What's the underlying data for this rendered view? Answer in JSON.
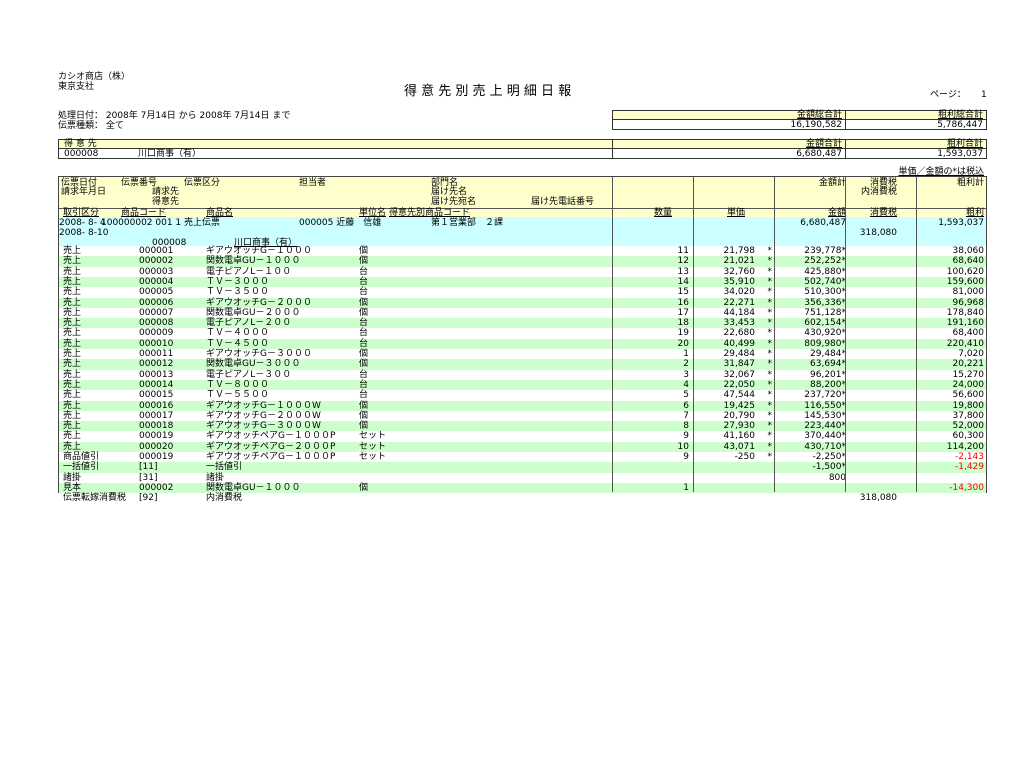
{
  "company": "カシオ商店（株）",
  "branch": "東京支社",
  "title": "得 意 先 別 売 上 明 細 日 報",
  "page_label": "ページ：",
  "page_no": "1",
  "date_range": "処理日付： 2008年 7月14日 から 2008年 7月14日 まで",
  "slip_type": "伝票種類： 全て",
  "grand": {
    "amount_label": "金額総合計",
    "amount": "16,190,582",
    "profit_label": "粗利総合計",
    "profit": "5,786,447"
  },
  "customer": {
    "label": "得 意 先",
    "code": "000008",
    "name": "川口商事（有）",
    "amount_label": "金額合計",
    "amount": "6,680,487",
    "profit_label": "粗利合計",
    "profit": "1,593,037"
  },
  "note": "単価／金額の*は税込",
  "headers": {
    "slip_date": "伝票日付",
    "bill_date": "請求年月日",
    "slip_no": "伝票番号",
    "bill_to": "請求先",
    "customer": "得意先",
    "slip_kind": "伝票区分",
    "staff": "担当者",
    "dept": "部門名",
    "ship_name": "届け先名",
    "ship_attn": "届け先宛名",
    "ship_tel": "届け先電話番号",
    "amount_total": "金額計",
    "tax": "消費税",
    "inner_tax": "内消費税",
    "profit_total": "粗利計",
    "trade": "取引区分",
    "item_code": "商品コード",
    "item_name": "商品名",
    "unit": "単位名",
    "cust_item_code": "得意先別商品コード",
    "qty": "数量",
    "price": "単価",
    "amount": "金額",
    "tax2": "消費税",
    "profit": "粗利"
  },
  "slip": {
    "date": "2008- 8- 4",
    "bill_date": "2008- 8-10",
    "no_kind": "100000002 001 1 売上伝票",
    "staff": "000005 近藤　信雄",
    "dept": "第１営業部　２課",
    "cust_code": "000008",
    "cust_name": "川口商事（有）",
    "amount": "6,680,487",
    "tax": "318,080",
    "profit": "1,593,037"
  },
  "rows": [
    {
      "trade": "売上",
      "code": "000001",
      "name": "ギアウオッチG－１０００",
      "unit": "個",
      "qty": "11",
      "price": "21,798",
      "pt": "*",
      "amount": "239,778*",
      "tax": "",
      "profit": "38,060"
    },
    {
      "trade": "売上",
      "code": "000002",
      "name": "関数電卓GU－１０００",
      "unit": "個",
      "qty": "12",
      "price": "21,021",
      "pt": "*",
      "amount": "252,252*",
      "tax": "",
      "profit": "68,640"
    },
    {
      "trade": "売上",
      "code": "000003",
      "name": "電子ピアノL－１００",
      "unit": "台",
      "qty": "13",
      "price": "32,760",
      "pt": "*",
      "amount": "425,880*",
      "tax": "",
      "profit": "100,620"
    },
    {
      "trade": "売上",
      "code": "000004",
      "name": "ＴＶ－３０００",
      "unit": "台",
      "qty": "14",
      "price": "35,910",
      "pt": "*",
      "amount": "502,740*",
      "tax": "",
      "profit": "159,600"
    },
    {
      "trade": "売上",
      "code": "000005",
      "name": "ＴＶ－３５００",
      "unit": "台",
      "qty": "15",
      "price": "34,020",
      "pt": "*",
      "amount": "510,300*",
      "tax": "",
      "profit": "81,000"
    },
    {
      "trade": "売上",
      "code": "000006",
      "name": "ギアウオッチG－２０００",
      "unit": "個",
      "qty": "16",
      "price": "22,271",
      "pt": "*",
      "amount": "356,336*",
      "tax": "",
      "profit": "96,968"
    },
    {
      "trade": "売上",
      "code": "000007",
      "name": "関数電卓GU－２０００",
      "unit": "個",
      "qty": "17",
      "price": "44,184",
      "pt": "*",
      "amount": "751,128*",
      "tax": "",
      "profit": "178,840"
    },
    {
      "trade": "売上",
      "code": "000008",
      "name": "電子ピアノL－２００",
      "unit": "台",
      "qty": "18",
      "price": "33,453",
      "pt": "*",
      "amount": "602,154*",
      "tax": "",
      "profit": "191,160"
    },
    {
      "trade": "売上",
      "code": "000009",
      "name": "ＴＶ－４０００",
      "unit": "台",
      "qty": "19",
      "price": "22,680",
      "pt": "*",
      "amount": "430,920*",
      "tax": "",
      "profit": "68,400"
    },
    {
      "trade": "売上",
      "code": "000010",
      "name": "ＴＶ－４５００",
      "unit": "台",
      "qty": "20",
      "price": "40,499",
      "pt": "*",
      "amount": "809,980*",
      "tax": "",
      "profit": "220,410"
    },
    {
      "trade": "売上",
      "code": "000011",
      "name": "ギアウオッチG－３０００",
      "unit": "個",
      "qty": "1",
      "price": "29,484",
      "pt": "*",
      "amount": "29,484*",
      "tax": "",
      "profit": "7,020"
    },
    {
      "trade": "売上",
      "code": "000012",
      "name": "関数電卓GU－３０００",
      "unit": "個",
      "qty": "2",
      "price": "31,847",
      "pt": "*",
      "amount": "63,694*",
      "tax": "",
      "profit": "20,221"
    },
    {
      "trade": "売上",
      "code": "000013",
      "name": "電子ピアノL－３００",
      "unit": "台",
      "qty": "3",
      "price": "32,067",
      "pt": "*",
      "amount": "96,201*",
      "tax": "",
      "profit": "15,270"
    },
    {
      "trade": "売上",
      "code": "000014",
      "name": "ＴＶ－８０００",
      "unit": "台",
      "qty": "4",
      "price": "22,050",
      "pt": "*",
      "amount": "88,200*",
      "tax": "",
      "profit": "24,000"
    },
    {
      "trade": "売上",
      "code": "000015",
      "name": "ＴＶ－５５００",
      "unit": "台",
      "qty": "5",
      "price": "47,544",
      "pt": "*",
      "amount": "237,720*",
      "tax": "",
      "profit": "56,600"
    },
    {
      "trade": "売上",
      "code": "000016",
      "name": "ギアウオッチG－１０００W",
      "unit": "個",
      "qty": "6",
      "price": "19,425",
      "pt": "*",
      "amount": "116,550*",
      "tax": "",
      "profit": "19,800"
    },
    {
      "trade": "売上",
      "code": "000017",
      "name": "ギアウオッチG－２０００W",
      "unit": "個",
      "qty": "7",
      "price": "20,790",
      "pt": "*",
      "amount": "145,530*",
      "tax": "",
      "profit": "37,800"
    },
    {
      "trade": "売上",
      "code": "000018",
      "name": "ギアウオッチG－３０００W",
      "unit": "個",
      "qty": "8",
      "price": "27,930",
      "pt": "*",
      "amount": "223,440*",
      "tax": "",
      "profit": "52,000"
    },
    {
      "trade": "売上",
      "code": "000019",
      "name": "ギアウオッチペアG－１０００P",
      "unit": "セット",
      "qty": "9",
      "price": "41,160",
      "pt": "*",
      "amount": "370,440*",
      "tax": "",
      "profit": "60,300"
    },
    {
      "trade": "売上",
      "code": "000020",
      "name": "ギアウオッチペアG－２０００P",
      "unit": "セット",
      "qty": "10",
      "price": "43,071",
      "pt": "*",
      "amount": "430,710*",
      "tax": "",
      "profit": "114,200"
    },
    {
      "trade": "商品値引",
      "code": "000019",
      "name": "ギアウオッチペアG－１０００P",
      "unit": "セット",
      "qty": "9",
      "price": "-250",
      "pt": "*",
      "amount": "-2,250*",
      "tax": "",
      "profit": "-2,143",
      "neg": true
    },
    {
      "trade": "一括値引",
      "code": "[11]",
      "name": "一括値引",
      "unit": "",
      "qty": "",
      "price": "",
      "pt": "",
      "amount": "-1,500*",
      "tax": "",
      "profit": "-1,429",
      "neg": true
    },
    {
      "trade": "諸掛",
      "code": "[31]",
      "name": "諸掛",
      "unit": "",
      "qty": "",
      "price": "",
      "pt": "",
      "amount": "800",
      "tax": "",
      "profit": ""
    },
    {
      "trade": "見本",
      "code": "000002",
      "name": "関数電卓GU－１０００",
      "unit": "個",
      "qty": "1",
      "price": "",
      "pt": "",
      "amount": "",
      "tax": "",
      "profit": "-14,300",
      "neg": true
    },
    {
      "trade": "伝票転嫁消費税",
      "code": "[92]",
      "name": "内消費税",
      "unit": "",
      "qty": "",
      "price": "",
      "pt": "",
      "amount": "",
      "tax": "318,080",
      "profit": ""
    }
  ]
}
